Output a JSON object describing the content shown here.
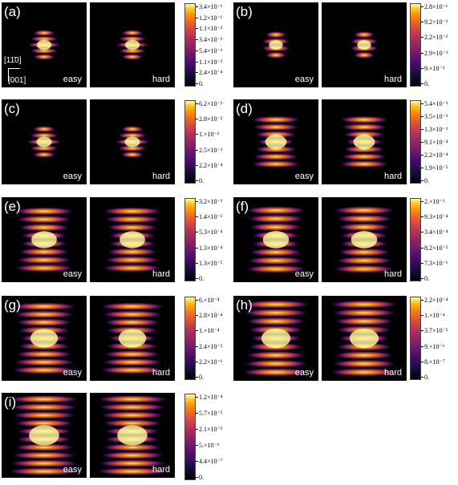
{
  "panels": [
    {
      "id": "a",
      "label": "(a)",
      "left": "easy",
      "right": "hard",
      "ticks": [
        "3.4×10⁻¹",
        "1.2×10⁻¹",
        "1.1×10⁻²",
        "3.4×10⁻²",
        "5.4×10⁻³",
        "1.1×10⁻³",
        "2.4×10⁻⁴",
        "0."
      ]
    },
    {
      "id": "b",
      "label": "(b)",
      "left": "easy",
      "right": "hard",
      "ticks": [
        "2.8×10⁻¹",
        "9.2×10⁻²",
        "2.2×10⁻²",
        "2.9×10⁻³",
        "9.×10⁻⁵",
        "0."
      ]
    },
    {
      "id": "c",
      "label": "(c)",
      "left": "easy",
      "right": "hard",
      "ticks": [
        "6.2×10⁻²",
        "2.8×10⁻²",
        "1.×10⁻²",
        "2.5×10⁻³",
        "2.2×10⁻⁴",
        "0."
      ]
    },
    {
      "id": "d",
      "label": "(d)",
      "left": "easy",
      "right": "hard",
      "ticks": [
        "5.4×10⁻³",
        "3.5×10⁻³",
        "1.3×10⁻³",
        "9.1×10⁻⁴",
        "2.2×10⁻⁴",
        "1.9×10⁻⁵",
        "0."
      ]
    },
    {
      "id": "e",
      "label": "(e)",
      "left": "easy",
      "right": "hard",
      "ticks": [
        "3.2×10⁻³",
        "1.4×10⁻³",
        "5.3×10⁻⁴",
        "1.3×10⁻⁴",
        "1.3×10⁻⁵",
        "0."
      ]
    },
    {
      "id": "f",
      "label": "(f)",
      "left": "easy",
      "right": "hard",
      "ticks": [
        "2.×10⁻³",
        "9.3×10⁻⁴",
        "3.4×10⁻⁴",
        "8.2×10⁻⁵",
        "7.3×10⁻⁶",
        "0."
      ]
    },
    {
      "id": "g",
      "label": "(g)",
      "left": "easy",
      "right": "hard",
      "ticks": [
        "6.×10⁻⁴",
        "2.8×10⁻⁴",
        "1.×10⁻⁴",
        "2.4×10⁻⁵",
        "2.2×10⁻⁶",
        "0."
      ]
    },
    {
      "id": "h",
      "label": "(h)",
      "left": "easy",
      "right": "hard",
      "ticks": [
        "2.2×10⁻⁴",
        "1.×10⁻⁴",
        "3.7×10⁻⁵",
        "9.×10⁻⁶",
        "8.×10⁻⁷",
        "0."
      ]
    },
    {
      "id": "i",
      "label": "(i)",
      "left": "easy",
      "right": "hard",
      "ticks": [
        "1.2×10⁻⁴",
        "5.7×10⁻⁵",
        "2.1×10⁻⁵",
        "5.×10⁻⁶",
        "4.4×10⁻⁷",
        "0."
      ]
    }
  ],
  "axes": {
    "horizontal": "[11̄0]",
    "vertical": "[001]"
  },
  "colors": {
    "background": "#000000",
    "colormap": "inferno"
  }
}
